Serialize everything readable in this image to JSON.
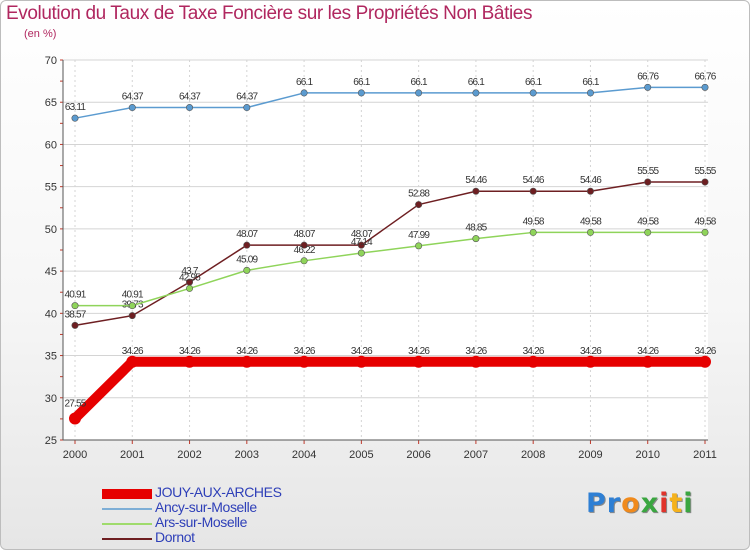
{
  "chart_data": {
    "type": "line",
    "title": "Evolution du Taux de Taxe Foncière sur les Propriétés Non Bâties",
    "ylabel": "(en %)",
    "ylim": [
      25,
      70
    ],
    "yticks": [
      "25",
      "30",
      "35",
      "40",
      "45",
      "50",
      "55",
      "60",
      "65",
      "70"
    ],
    "categories": [
      "2000",
      "2001",
      "2002",
      "2003",
      "2004",
      "2005",
      "2006",
      "2007",
      "2008",
      "2009",
      "2010",
      "2011"
    ],
    "series": [
      {
        "name": "Ancy-sur-Moselle",
        "color": "#5b9bd0",
        "values": [
          63.11,
          64.37,
          64.37,
          64.37,
          66.1,
          66.1,
          66.1,
          66.1,
          66.1,
          66.1,
          66.76,
          66.76
        ],
        "labels": [
          "63.11",
          "64.37",
          "64.37",
          "64.37",
          "66.1",
          "66.1",
          "66.1",
          "66.1",
          "66.1",
          "66.1",
          "66.76",
          "66.76"
        ]
      },
      {
        "name": "Dornot",
        "color": "#6e1f22",
        "values": [
          38.57,
          39.73,
          43.7,
          48.07,
          48.07,
          48.07,
          52.88,
          54.46,
          54.46,
          54.46,
          55.55,
          55.55
        ],
        "labels": [
          "38.57",
          "39.73",
          "43.7",
          "48.07",
          "48.07",
          "48.07",
          "52.88",
          "54.46",
          "54.46",
          "54.46",
          "55.55",
          "55.55"
        ]
      },
      {
        "name": "Ars-sur-Moselle",
        "color": "#8fd45a",
        "values": [
          40.91,
          40.91,
          42.95,
          45.09,
          46.22,
          47.14,
          47.99,
          48.85,
          49.58,
          49.58,
          49.58,
          49.58
        ],
        "labels": [
          "40.91",
          "40.91",
          "42.95",
          "45.09",
          "46.22",
          "47.14",
          "47.99",
          "48.85",
          "49.58",
          "49.58",
          "49.58",
          "49.58"
        ]
      },
      {
        "name": "JOUY-AUX-ARCHES",
        "color": "#e60000",
        "values": [
          27.55,
          34.26,
          34.26,
          34.26,
          34.26,
          34.26,
          34.26,
          34.26,
          34.26,
          34.26,
          34.26,
          34.26
        ],
        "labels": [
          "27.55",
          "34.26",
          "34.26",
          "34.26",
          "34.26",
          "34.26",
          "34.26",
          "34.26",
          "34.26",
          "34.26",
          "34.26",
          "34.26"
        ]
      }
    ],
    "legend": [
      {
        "name": "JOUY-AUX-ARCHES",
        "color": "#e60000",
        "weight": "thick"
      },
      {
        "name": "Ancy-sur-Moselle",
        "color": "#7eaed6",
        "weight": "thin"
      },
      {
        "name": "Ars-sur-Moselle",
        "color": "#9fdb6c",
        "weight": "thin"
      },
      {
        "name": "Dornot",
        "color": "#6e1f22",
        "weight": "thin"
      }
    ]
  },
  "logo": {
    "letters": [
      "P",
      "r",
      "o",
      "x",
      "i",
      "t",
      "i"
    ],
    "colors": [
      "#2e7fd4",
      "#2e7fd4",
      "#f08a1c",
      "#3aa640",
      "#e0332b",
      "#f5b21c",
      "#3aa640"
    ]
  }
}
